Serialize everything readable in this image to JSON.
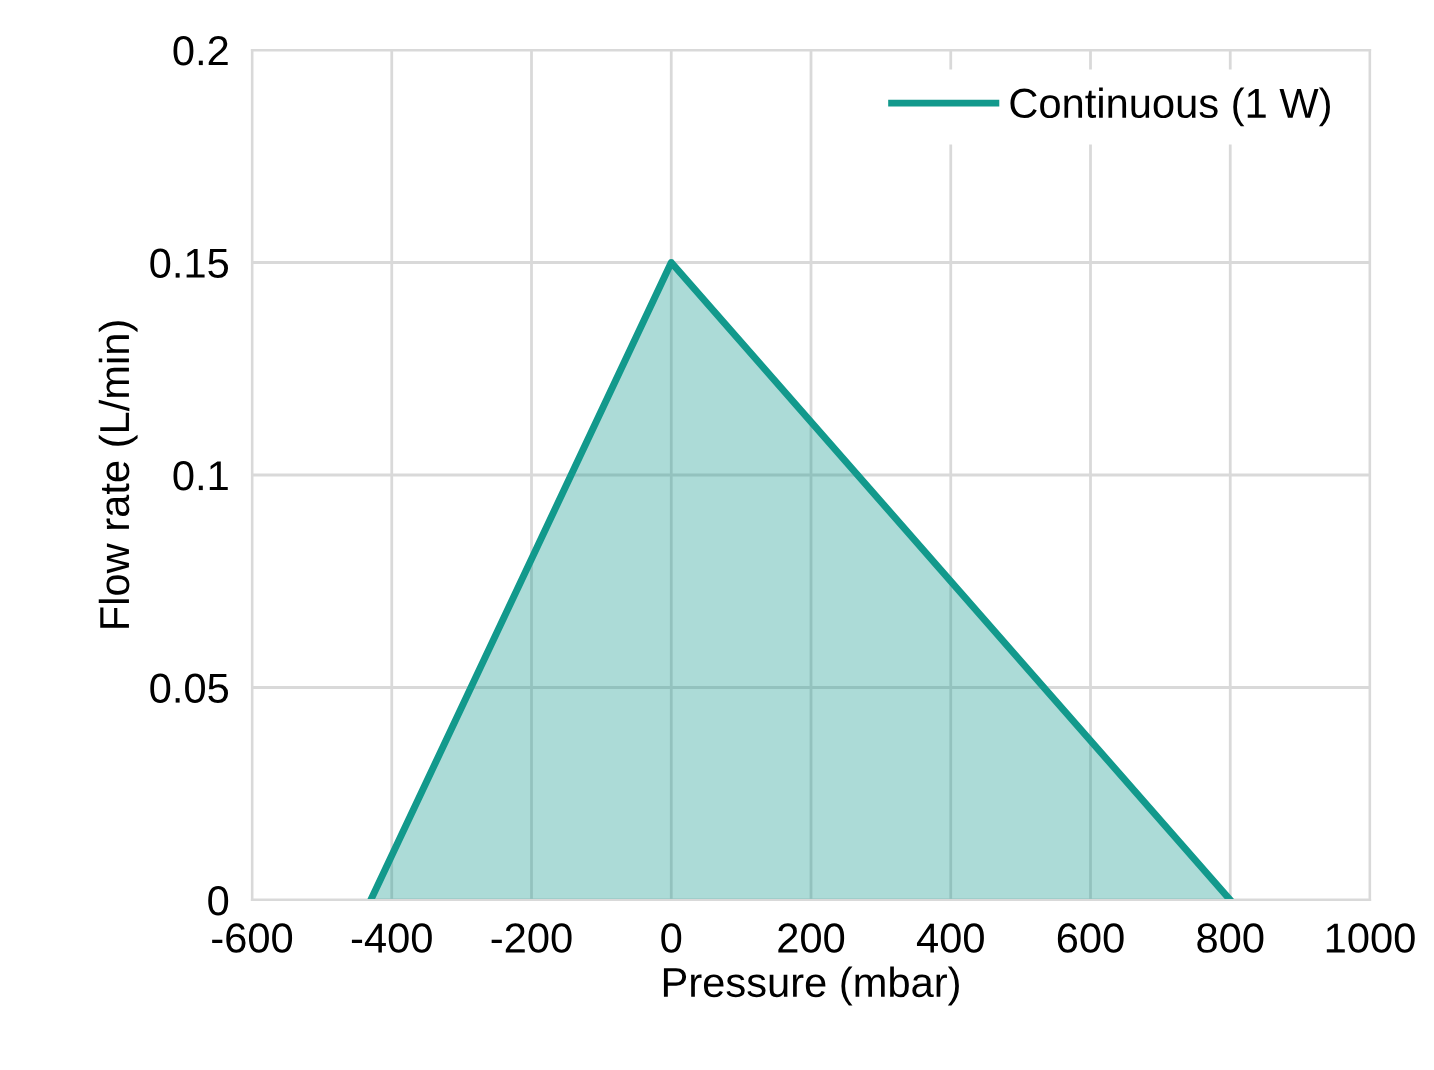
{
  "chart_data": {
    "type": "area",
    "xlabel": "Pressure (mbar)",
    "ylabel": "Flow rate (L/min)",
    "x": [
      -430,
      0,
      800
    ],
    "series": [
      {
        "name": "Continuous (1 W)",
        "color": "#12998c",
        "values": [
          0,
          0.15,
          0
        ]
      }
    ],
    "xlim": [
      -600,
      1000
    ],
    "xticks": [
      -600,
      -400,
      -200,
      0,
      200,
      400,
      600,
      800,
      1000
    ],
    "ylim": [
      0,
      0.2
    ],
    "yticks": [
      0,
      0.05,
      0.1,
      0.15,
      0.2
    ],
    "grid": true,
    "legend": "top right"
  }
}
